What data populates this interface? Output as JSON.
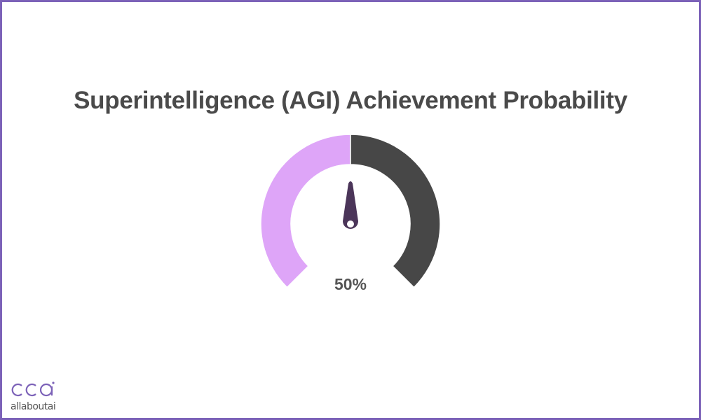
{
  "chart_data": {
    "type": "gauge",
    "title": "Superintelligence (AGI) Achievement Probability",
    "value": 50,
    "value_label": "50%",
    "range": [
      0,
      100
    ],
    "segments": [
      {
        "from": 0,
        "to": 50,
        "color": "#dea5f8"
      },
      {
        "from": 50,
        "to": 100,
        "color": "#474747"
      }
    ],
    "needle_color": "#4b3559"
  },
  "logo": {
    "text": "allaboutai",
    "color": "#7c62b8"
  }
}
